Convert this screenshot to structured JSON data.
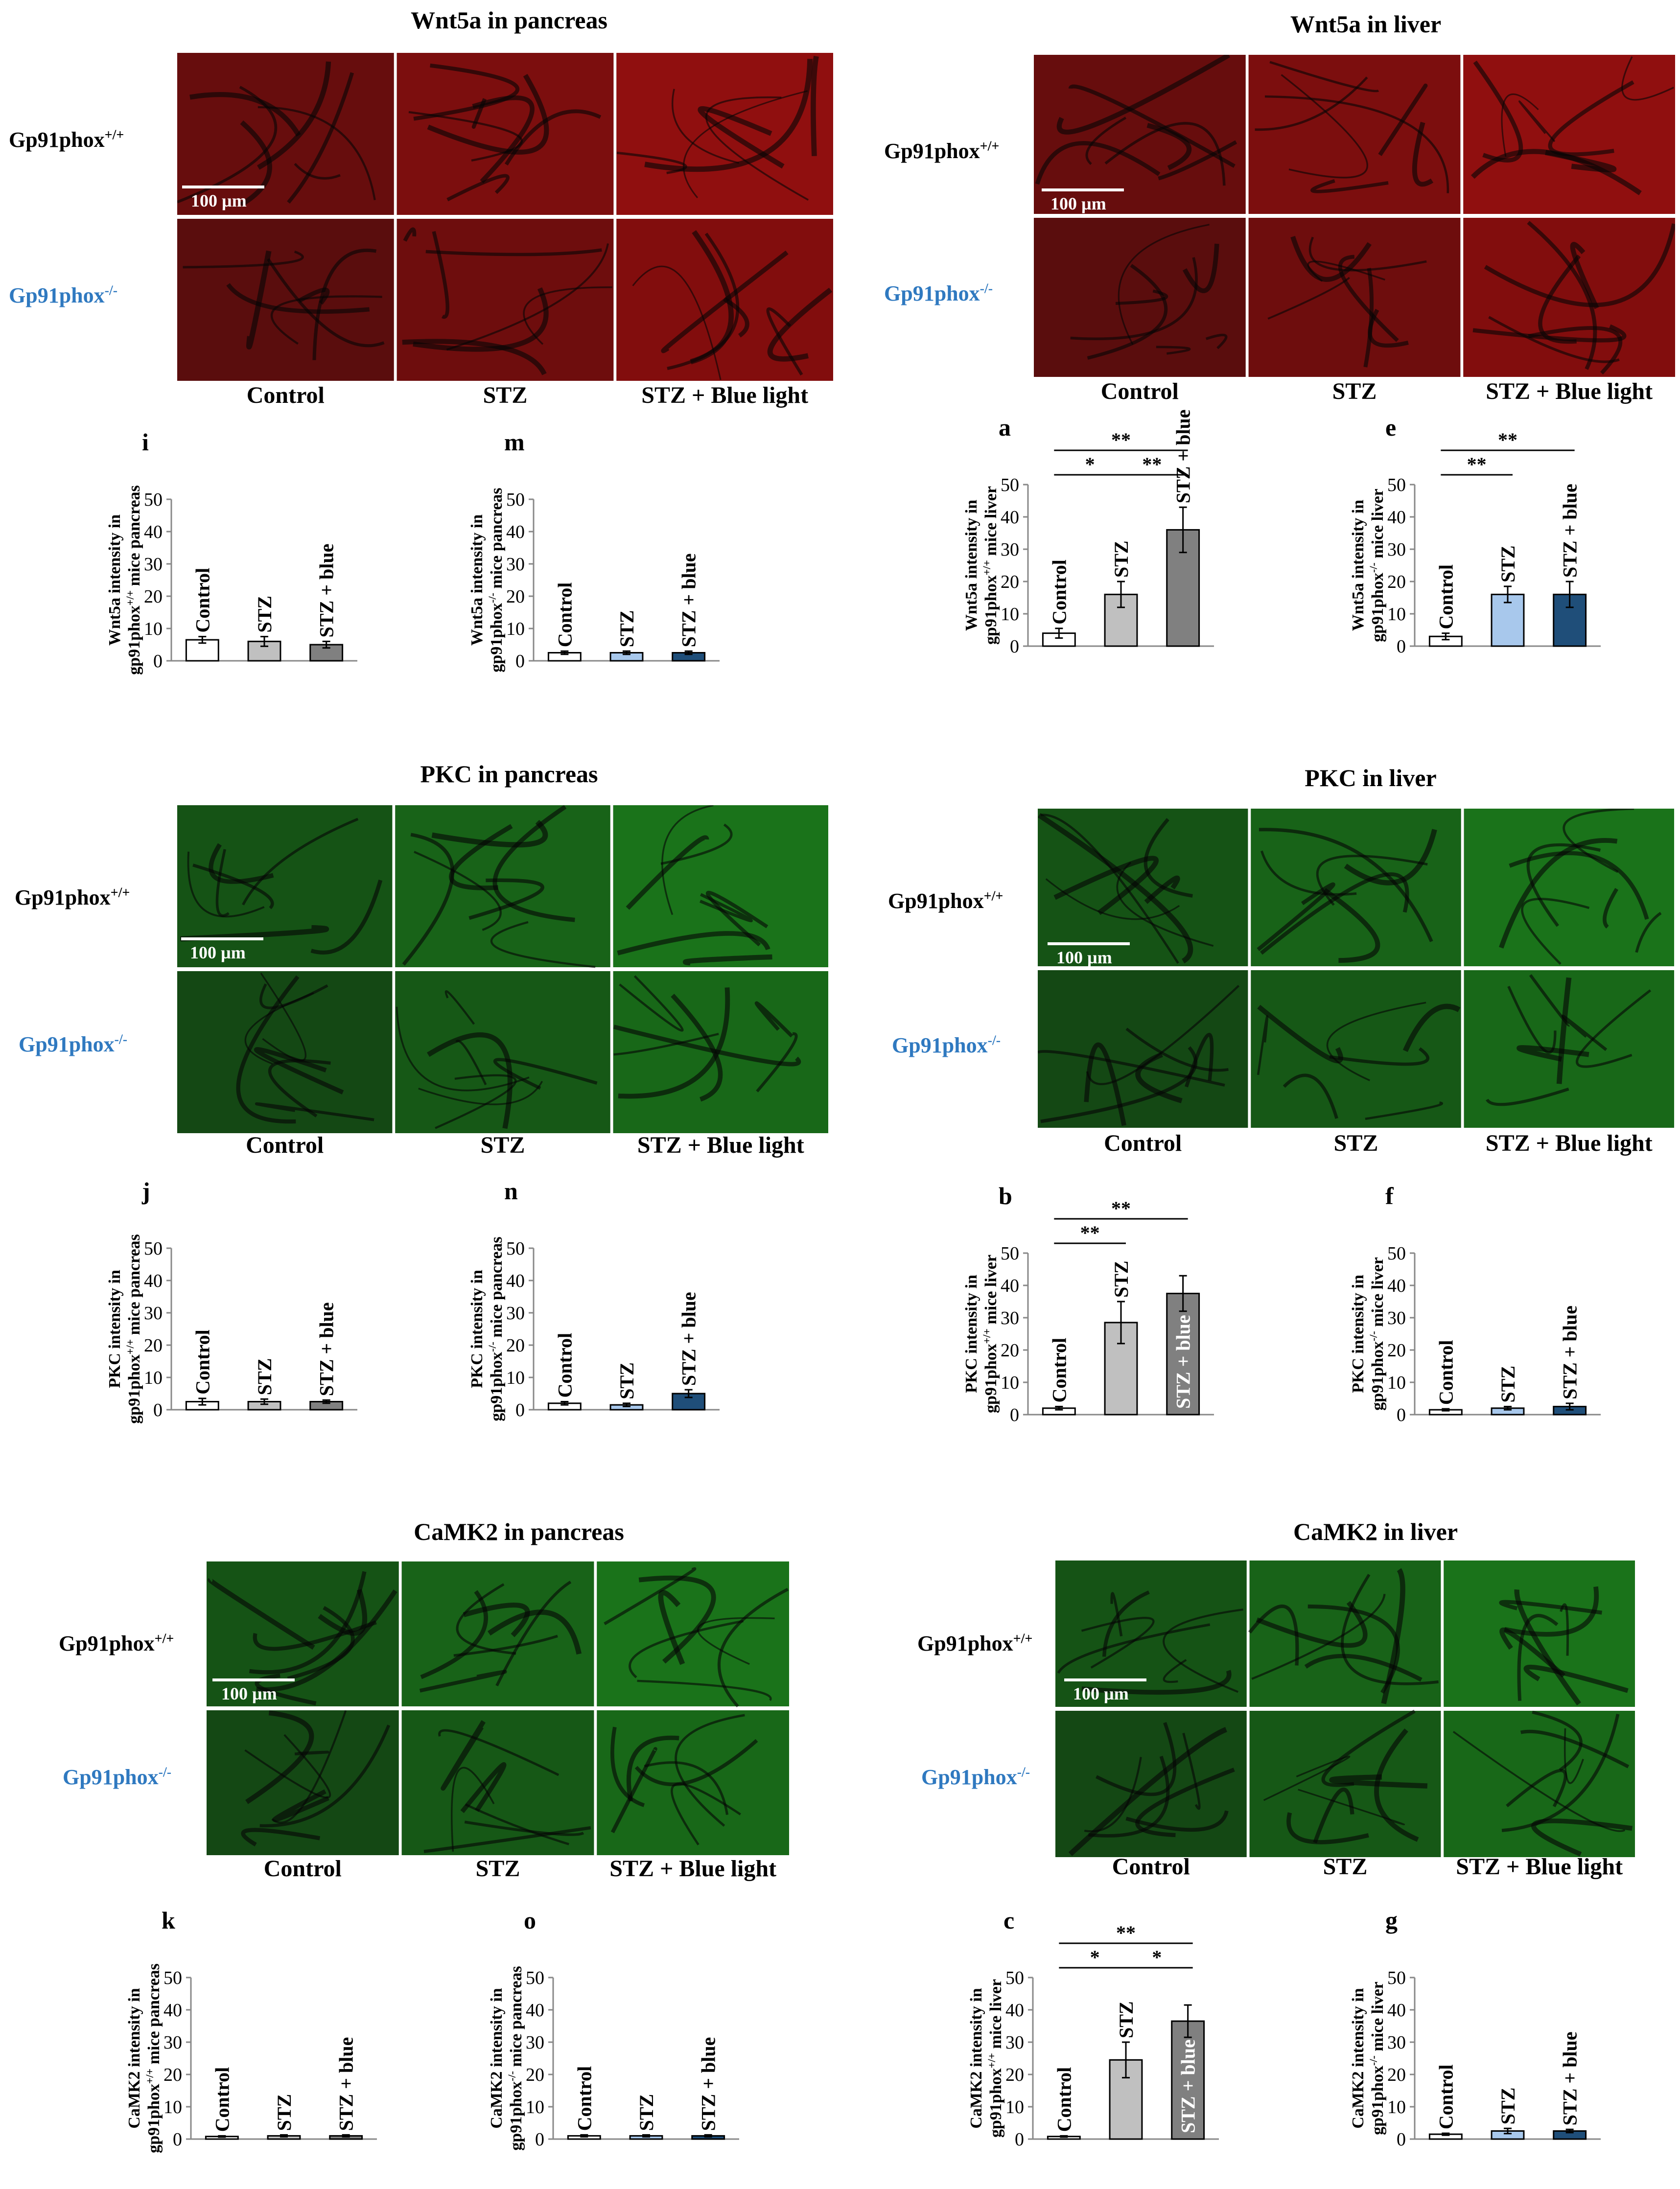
{
  "colors": {
    "wt_control": "#ffffff",
    "wt_stz": "#c0c0c0",
    "wt_stz_blue": "#808080",
    "ko_control": "#ffffff",
    "ko_stz": "#a8c8ec",
    "ko_stz_blue": "#1f4e79",
    "ko_label": "#2f79c0",
    "tissue_red": "#b41010",
    "tissue_green": "#1f8f1f"
  },
  "genotypes": {
    "wt": {
      "base": "Gp91phox",
      "sup": "+/+"
    },
    "ko": {
      "base": "Gp91phox",
      "sup": "-/-"
    }
  },
  "group_labels": [
    "Control",
    "STZ",
    "STZ + Blue light"
  ],
  "scale_bar": "100 µm",
  "sections": [
    {
      "id": "wnt5a-pancreas",
      "title": "Wnt5a in pancreas",
      "stain": "red"
    },
    {
      "id": "wnt5a-liver",
      "title": "Wnt5a in liver",
      "stain": "red"
    },
    {
      "id": "pkc-pancreas",
      "title": "PKC in pancreas",
      "stain": "green"
    },
    {
      "id": "pkc-liver",
      "title": "PKC in liver",
      "stain": "green"
    },
    {
      "id": "camk2-pancreas",
      "title": "CaMK2 in pancreas",
      "stain": "green"
    },
    {
      "id": "camk2-liver",
      "title": "CaMK2 in liver",
      "stain": "green"
    }
  ],
  "chart_data": [
    {
      "panel": "i",
      "type": "bar",
      "ylabel_line1": "Wnt5a intensity in",
      "ylabel_pre": "gp91phox",
      "ylabel_sup": "+/+",
      "ylabel_post": " mice pancreas",
      "categories": [
        "Control",
        "STZ",
        "STZ + blue"
      ],
      "values": [
        6.5,
        6,
        5
      ],
      "errors": [
        1,
        1.5,
        1
      ],
      "ylim": [
        0,
        50
      ],
      "ticks": [
        0,
        10,
        20,
        30,
        40,
        50
      ],
      "genotype": "wt",
      "significance": []
    },
    {
      "panel": "m",
      "type": "bar",
      "ylabel_line1": "Wnt5a intensity in",
      "ylabel_pre": "gp91phox",
      "ylabel_sup": "-/-",
      "ylabel_post": " mice pancreas",
      "categories": [
        "Control",
        "STZ",
        "STZ + blue"
      ],
      "values": [
        2.5,
        2.5,
        2.5
      ],
      "errors": [
        0.5,
        0.5,
        0.5
      ],
      "ylim": [
        0,
        50
      ],
      "ticks": [
        0,
        10,
        20,
        30,
        40,
        50
      ],
      "genotype": "ko",
      "significance": []
    },
    {
      "panel": "a",
      "type": "bar",
      "ylabel_line1": "Wnt5a intensity in",
      "ylabel_pre": "gp91phox",
      "ylabel_sup": "+/+",
      "ylabel_post": " mice liver",
      "categories": [
        "Control",
        "STZ",
        "STZ + blue"
      ],
      "values": [
        4,
        16,
        36
      ],
      "errors": [
        1.5,
        4,
        7
      ],
      "ylim": [
        0,
        50
      ],
      "ticks": [
        0,
        10,
        20,
        30,
        40,
        50
      ],
      "genotype": "wt",
      "significance": [
        {
          "from": 0,
          "to": 2,
          "label": "**"
        },
        {
          "from": 0,
          "to": 1,
          "label": "*"
        },
        {
          "from": 1,
          "to": 2,
          "label": "**"
        }
      ]
    },
    {
      "panel": "e",
      "type": "bar",
      "ylabel_line1": "Wnt5a intensity in",
      "ylabel_pre": "gp91phox",
      "ylabel_sup": "-/-",
      "ylabel_post": " mice liver",
      "categories": [
        "Control",
        "STZ",
        "STZ + blue"
      ],
      "values": [
        3,
        16,
        16
      ],
      "errors": [
        1,
        2.5,
        4
      ],
      "ylim": [
        0,
        50
      ],
      "ticks": [
        0,
        10,
        20,
        30,
        40,
        50
      ],
      "genotype": "ko",
      "significance": [
        {
          "from": 0,
          "to": 2,
          "label": "**"
        },
        {
          "from": 0,
          "to": 1,
          "label": "**"
        }
      ]
    },
    {
      "panel": "j",
      "type": "bar",
      "ylabel_line1": "PKC intensity in",
      "ylabel_pre": "gp91phox",
      "ylabel_sup": "+/+",
      "ylabel_post": " mice pancreas",
      "categories": [
        "Control",
        "STZ",
        "STZ + blue"
      ],
      "values": [
        2.5,
        2.5,
        2.5
      ],
      "errors": [
        1,
        0.8,
        0.5
      ],
      "ylim": [
        0,
        50
      ],
      "ticks": [
        0,
        10,
        20,
        30,
        40,
        50
      ],
      "genotype": "wt",
      "significance": []
    },
    {
      "panel": "n",
      "type": "bar",
      "ylabel_line1": "PKC intensity in",
      "ylabel_pre": "gp91phox",
      "ylabel_sup": "-/-",
      "ylabel_post": " mice pancreas",
      "categories": [
        "Control",
        "STZ",
        "STZ + blue"
      ],
      "values": [
        2,
        1.5,
        5
      ],
      "errors": [
        0.5,
        0.5,
        1.2
      ],
      "ylim": [
        0,
        50
      ],
      "ticks": [
        0,
        10,
        20,
        30,
        40,
        50
      ],
      "genotype": "ko",
      "significance": []
    },
    {
      "panel": "b",
      "type": "bar",
      "ylabel_line1": "PKC intensity in",
      "ylabel_pre": "gp91phox",
      "ylabel_sup": "+/+",
      "ylabel_post": " mice liver",
      "categories": [
        "Control",
        "STZ",
        "STZ + blue"
      ],
      "values": [
        2,
        28.5,
        37.5
      ],
      "errors": [
        0.5,
        6.5,
        5.5
      ],
      "ylim": [
        0,
        50
      ],
      "ticks": [
        0,
        10,
        20,
        30,
        40,
        50
      ],
      "genotype": "wt",
      "significance": [
        {
          "from": 0,
          "to": 2,
          "label": "**"
        },
        {
          "from": 0,
          "to": 1,
          "label": "**"
        }
      ]
    },
    {
      "panel": "f",
      "type": "bar",
      "ylabel_line1": "PKC intensity in",
      "ylabel_pre": "gp91phox",
      "ylabel_sup": "-/-",
      "ylabel_post": " mice liver",
      "categories": [
        "Control",
        "STZ",
        "STZ + blue"
      ],
      "values": [
        1.5,
        2,
        2.5
      ],
      "errors": [
        0.3,
        0.5,
        1
      ],
      "ylim": [
        0,
        50
      ],
      "ticks": [
        0,
        10,
        20,
        30,
        40,
        50
      ],
      "genotype": "ko",
      "significance": []
    },
    {
      "panel": "k",
      "type": "bar",
      "ylabel_line1": "CaMK2 intensity in",
      "ylabel_pre": "gp91phox",
      "ylabel_sup": "+/+",
      "ylabel_post": " mice pancreas",
      "categories": [
        "Control",
        "STZ",
        "STZ + blue"
      ],
      "values": [
        0.8,
        1,
        1
      ],
      "errors": [
        0.2,
        0.3,
        0.3
      ],
      "ylim": [
        0,
        50
      ],
      "ticks": [
        0,
        10,
        20,
        30,
        40,
        50
      ],
      "genotype": "wt",
      "significance": []
    },
    {
      "panel": "o",
      "type": "bar",
      "ylabel_line1": "CaMK2 intensity in",
      "ylabel_pre": "gp91phox",
      "ylabel_sup": "-/-",
      "ylabel_post": " mice pancreas",
      "categories": [
        "Control",
        "STZ",
        "STZ + blue"
      ],
      "values": [
        1,
        1,
        1
      ],
      "errors": [
        0.3,
        0.3,
        0.3
      ],
      "ylim": [
        0,
        50
      ],
      "ticks": [
        0,
        10,
        20,
        30,
        40,
        50
      ],
      "genotype": "ko",
      "significance": []
    },
    {
      "panel": "c",
      "type": "bar",
      "ylabel_line1": "CaMK2 intensity in",
      "ylabel_pre": "gp91phox",
      "ylabel_sup": "+/+",
      "ylabel_post": " mice liver",
      "categories": [
        "Control",
        "STZ",
        "STZ + blue"
      ],
      "values": [
        0.8,
        24.5,
        36.5
      ],
      "errors": [
        0.2,
        5.5,
        5
      ],
      "ylim": [
        0,
        50
      ],
      "ticks": [
        0,
        10,
        20,
        30,
        40,
        50
      ],
      "genotype": "wt",
      "significance": [
        {
          "from": 0,
          "to": 2,
          "label": "**"
        },
        {
          "from": 0,
          "to": 1,
          "label": "*"
        },
        {
          "from": 1,
          "to": 2,
          "label": "*"
        }
      ]
    },
    {
      "panel": "g",
      "type": "bar",
      "ylabel_line1": "CaMK2 intensity in",
      "ylabel_pre": "gp91phox",
      "ylabel_sup": "-/-",
      "ylabel_post": " mice liver",
      "categories": [
        "Control",
        "STZ",
        "STZ + blue"
      ],
      "values": [
        1.5,
        2.5,
        2.5
      ],
      "errors": [
        0.3,
        0.8,
        0.5
      ],
      "ylim": [
        0,
        50
      ],
      "ticks": [
        0,
        10,
        20,
        30,
        40,
        50
      ],
      "genotype": "ko",
      "significance": []
    }
  ]
}
